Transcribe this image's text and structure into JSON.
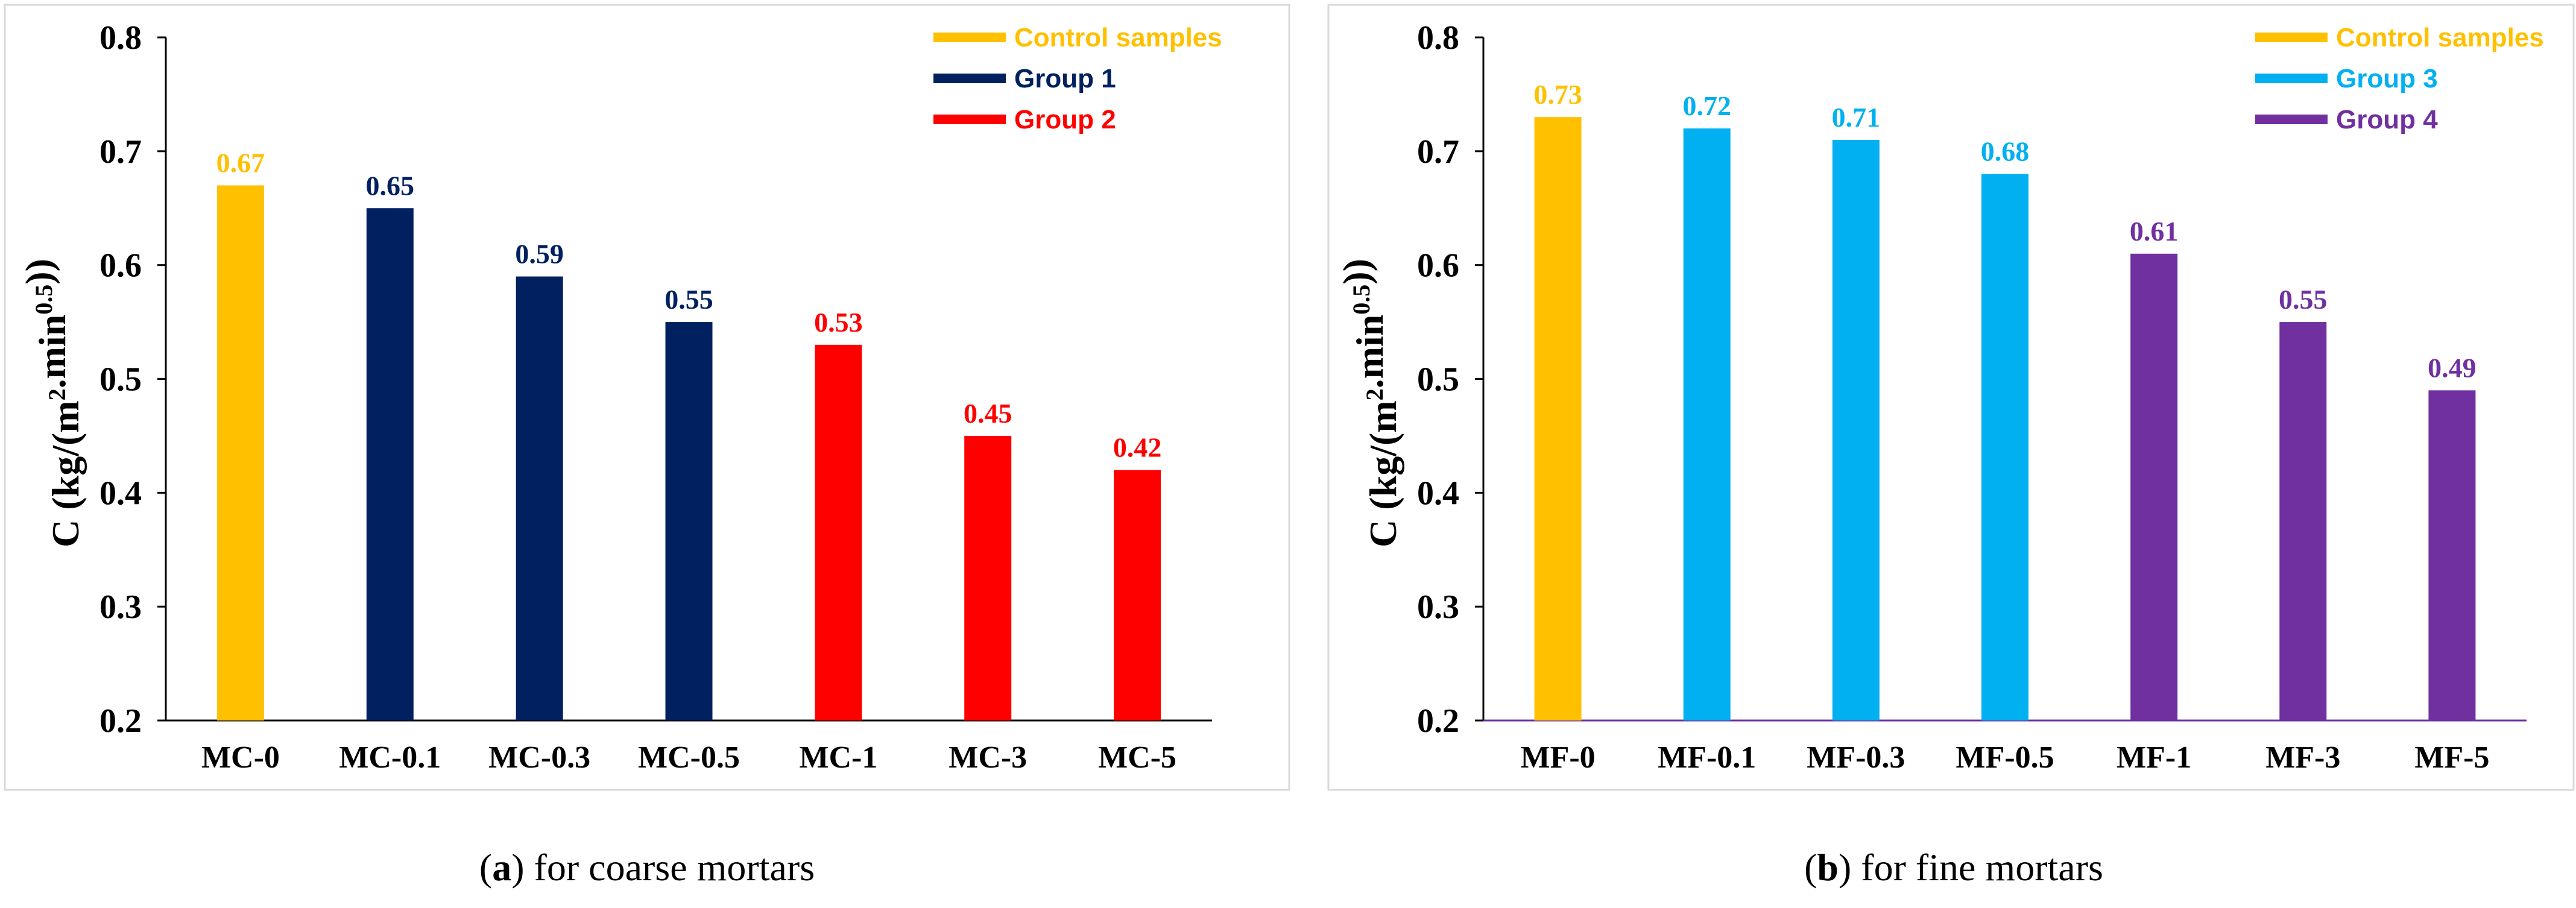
{
  "chart_data": [
    {
      "type": "bar",
      "panel_letter": "a",
      "caption_text": " for coarse mortars",
      "ylabel_main": "C (kg/(m",
      "ylabel_sup1": "2",
      "ylabel_mid": ".min",
      "ylabel_sup2": "0.5",
      "ylabel_end": "))",
      "ylim": [
        0.2,
        0.8
      ],
      "yticks": [
        "0.2",
        "0.3",
        "0.4",
        "0.5",
        "0.6",
        "0.7",
        "0.8"
      ],
      "categories": [
        "MC-0",
        "MC-0.1",
        "MC-0.3",
        "MC-0.5",
        "MC-1",
        "MC-3",
        "MC-5"
      ],
      "values": [
        0.67,
        0.65,
        0.59,
        0.55,
        0.53,
        0.45,
        0.42
      ],
      "value_labels": [
        "0.67",
        "0.65",
        "0.59",
        "0.55",
        "0.53",
        "0.45",
        "0.42"
      ],
      "groups": [
        0,
        1,
        1,
        1,
        2,
        2,
        2
      ],
      "legend": [
        {
          "name": "Control samples",
          "color": "#FFC000"
        },
        {
          "name": "Group 1",
          "color": "#002060"
        },
        {
          "name": "Group 2",
          "color": "#FF0000"
        }
      ],
      "legend_position": "top-right"
    },
    {
      "type": "bar",
      "panel_letter": "b",
      "caption_text": " for fine mortars",
      "ylabel_main": "C (kg/(m",
      "ylabel_sup1": "2",
      "ylabel_mid": ".min",
      "ylabel_sup2": "0.5",
      "ylabel_end": "))",
      "ylim": [
        0.2,
        0.8
      ],
      "yticks": [
        "0.2",
        "0.3",
        "0.4",
        "0.5",
        "0.6",
        "0.7",
        "0.8"
      ],
      "categories": [
        "MF-0",
        "MF-0.1",
        "MF-0.3",
        "MF-0.5",
        "MF-1",
        "MF-3",
        "MF-5"
      ],
      "values": [
        0.73,
        0.72,
        0.71,
        0.68,
        0.61,
        0.55,
        0.49
      ],
      "value_labels": [
        "0.73",
        "0.72",
        "0.71",
        "0.68",
        "0.61",
        "0.55",
        "0.49"
      ],
      "groups": [
        0,
        1,
        1,
        1,
        2,
        2,
        2
      ],
      "legend": [
        {
          "name": "Control samples",
          "color": "#FFC000"
        },
        {
          "name": "Group 3",
          "color": "#00B0F0"
        },
        {
          "name": "Group 4",
          "color": "#7030A0"
        }
      ],
      "legend_position": "top-right"
    }
  ]
}
